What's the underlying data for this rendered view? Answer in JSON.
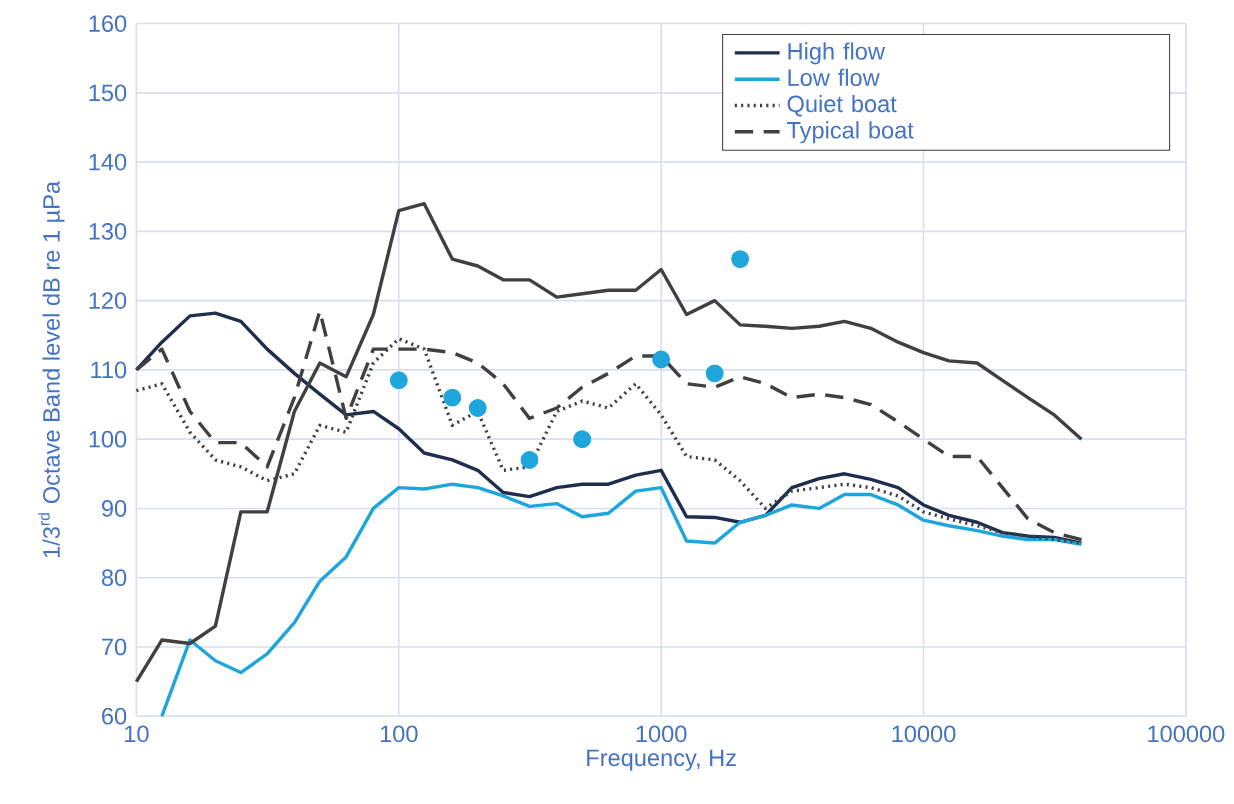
{
  "chart_data": {
    "type": "line",
    "xlabel": "Frequency, Hz",
    "ylabel": "1/3$^{rd}$ Octave Band level dB re 1 µPa",
    "log": "x",
    "xlim": [
      10,
      100000
    ],
    "ylim": [
      60,
      160
    ],
    "xticks": [
      10,
      100,
      1000,
      10000,
      100000
    ],
    "yticks": [
      60,
      70,
      80,
      90,
      100,
      110,
      120,
      130,
      140,
      150,
      160
    ],
    "grid": true,
    "legend": "top right",
    "x": [
      10,
      12.5,
      16,
      20,
      25,
      31.5,
      40,
      50,
      63,
      80,
      100,
      125,
      160,
      200,
      250,
      315,
      400,
      500,
      630,
      800,
      1000,
      1250,
      1600,
      2000,
      2500,
      3150,
      4000,
      5000,
      6300,
      8000,
      10000,
      12500,
      16000,
      20000,
      25000,
      31500,
      40000
    ],
    "series": [
      {
        "name": "High flow",
        "color": "#1f2d4e",
        "line_style": "solid",
        "values": [
          110,
          114,
          117.8,
          118.2,
          117,
          113,
          109.5,
          106.5,
          103.5,
          104,
          101.5,
          98,
          97,
          95.5,
          92.3,
          91.7,
          93,
          93.5,
          93.5,
          94.8,
          95.5,
          88.8,
          88.7,
          88,
          89,
          93,
          94.3,
          95,
          94.2,
          93,
          90.5,
          89,
          88,
          86.5,
          86,
          85.8,
          85
        ]
      },
      {
        "name": "Low flow",
        "color": "#1ea6dc",
        "line_style": "solid",
        "values": [
          null,
          60,
          71,
          68,
          66.3,
          69,
          73.5,
          79.5,
          83,
          90,
          93,
          92.8,
          93.5,
          93,
          91.8,
          90.3,
          90.7,
          88.8,
          89.3,
          92.5,
          93,
          85.3,
          85,
          88,
          89,
          90.5,
          90,
          92,
          92,
          90.5,
          88.3,
          87.5,
          86.8,
          86,
          85.5,
          85.5,
          84.8
        ]
      },
      {
        "name": "Quiet boat",
        "color": "#404040",
        "line_style": "dotted",
        "values": [
          107,
          108,
          101,
          97,
          96,
          94,
          95,
          102,
          101,
          111,
          114.5,
          113,
          102,
          104,
          95.5,
          96,
          104,
          105.5,
          104.5,
          108,
          103.5,
          97.5,
          97,
          94,
          90,
          92.5,
          93,
          93.5,
          93,
          91.8,
          89.5,
          88.5,
          87.5,
          86.5,
          86,
          85.5,
          85
        ]
      },
      {
        "name": "Typical boat",
        "color": "#404040",
        "line_style": "dashed",
        "values": [
          110,
          113,
          104,
          99.5,
          99.5,
          96,
          106,
          118.5,
          103,
          113,
          113,
          113,
          112.5,
          111,
          108,
          103,
          104.5,
          107.5,
          109.5,
          112,
          112,
          108,
          107.5,
          109,
          108,
          106,
          106.5,
          106,
          105,
          102.5,
          100,
          97.5,
          97.5,
          93,
          88.5,
          86.5,
          85.5
        ]
      },
      {
        "color": "#404040",
        "line_style": "solid",
        "values": [
          65,
          71,
          70.5,
          73,
          89.5,
          89.5,
          104,
          111,
          109,
          118,
          133,
          134,
          126,
          125,
          123,
          123,
          120.5,
          121,
          121.5,
          121.5,
          124.5,
          118,
          120,
          116.5,
          116.3,
          116,
          116.3,
          117,
          116,
          114,
          112.5,
          111.3,
          111,
          108.5,
          106,
          103.5,
          100
        ]
      },
      {
        "type": "scatter",
        "color": "#1ea6dc",
        "marker": "circle",
        "x": [
          100,
          160,
          200,
          315,
          500,
          1000,
          1600,
          2000
        ],
        "values": [
          108.5,
          106,
          104.5,
          97,
          100,
          111.5,
          109.5,
          126
        ]
      }
    ]
  }
}
